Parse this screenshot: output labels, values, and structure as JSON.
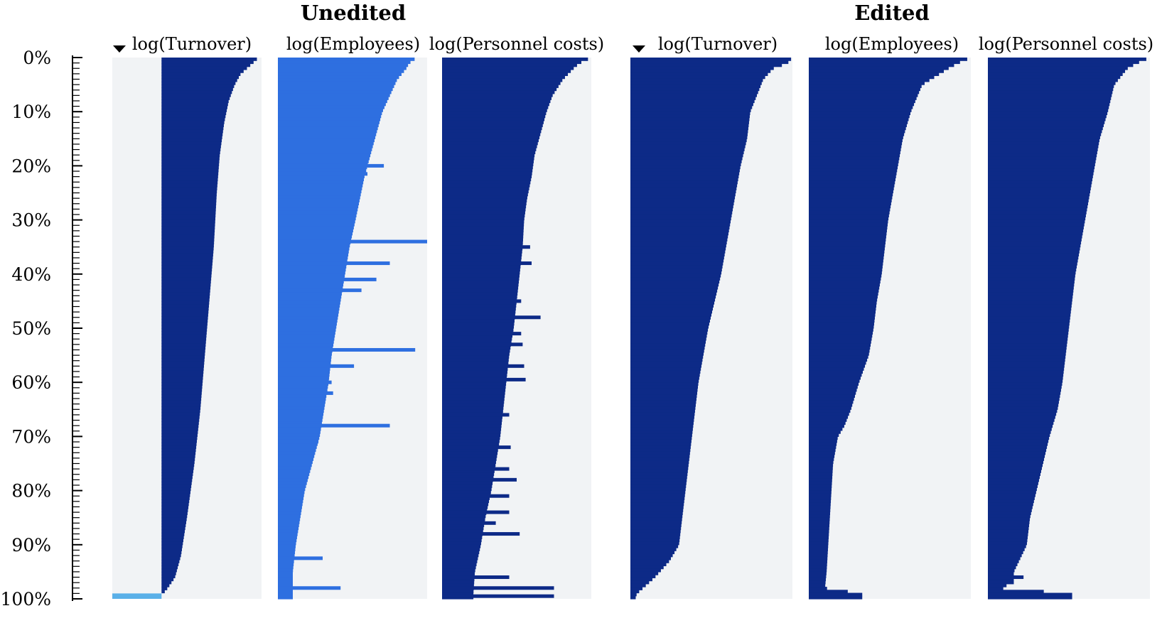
{
  "chart_data": {
    "type": "bar",
    "orientation": "horizontal",
    "layout": "table-lens",
    "y_axis": {
      "ticks": [
        "0%",
        "10%",
        "20%",
        "30%",
        "40%",
        "50%",
        "60%",
        "70%",
        "80%",
        "90%",
        "100%"
      ],
      "range": [
        0,
        100
      ],
      "unit": "percent"
    },
    "sort_indicator_icon": "triangle-down-icon",
    "colors": {
      "dark_bar": "#0d2a87",
      "light_bar": "#2e6fe0",
      "missing_bar": "#5ab0e8",
      "bar_background": "#f1f3f5",
      "axis": "#000000"
    },
    "panels": [
      {
        "title": "Unedited",
        "columns": [
          {
            "label": "log(Turnover)",
            "sorted": true,
            "color": "dark_bar",
            "value_range": [
              0,
              1
            ],
            "points": [
              [
                0,
                0.98
              ],
              [
                1,
                0.94
              ],
              [
                2,
                0.9
              ],
              [
                3,
                0.86
              ],
              [
                5,
                0.82
              ],
              [
                8,
                0.78
              ],
              [
                12,
                0.75
              ],
              [
                18,
                0.72
              ],
              [
                25,
                0.7
              ],
              [
                35,
                0.68
              ],
              [
                45,
                0.65
              ],
              [
                55,
                0.62
              ],
              [
                65,
                0.59
              ],
              [
                75,
                0.55
              ],
              [
                85,
                0.5
              ],
              [
                92,
                0.46
              ],
              [
                96,
                0.42
              ],
              [
                98,
                0.37
              ],
              [
                99,
                0.34
              ]
            ],
            "missing_band": {
              "from": 99,
              "to": 100,
              "value": 1.0
            }
          },
          {
            "label": "log(Employees)",
            "sorted": false,
            "color": "light_bar",
            "value_range": [
              0,
              1
            ],
            "points": [
              [
                0,
                0.93
              ],
              [
                1,
                0.88
              ],
              [
                2,
                0.86
              ],
              [
                4,
                0.8
              ],
              [
                7,
                0.75
              ],
              [
                10,
                0.7
              ],
              [
                14,
                0.66
              ],
              [
                18,
                0.62
              ],
              [
                22,
                0.58
              ],
              [
                26,
                0.55
              ],
              [
                30,
                0.52
              ],
              [
                35,
                0.48
              ],
              [
                40,
                0.45
              ],
              [
                45,
                0.42
              ],
              [
                50,
                0.39
              ],
              [
                55,
                0.36
              ],
              [
                60,
                0.34
              ],
              [
                65,
                0.31
              ],
              [
                70,
                0.28
              ],
              [
                75,
                0.23
              ],
              [
                80,
                0.18
              ],
              [
                85,
                0.15
              ],
              [
                90,
                0.12
              ],
              [
                95,
                0.1
              ],
              [
                99,
                0.1
              ]
            ],
            "outliers": [
              [
                20,
                0.71
              ],
              [
                21.5,
                0.6
              ],
              [
                34,
                1.0
              ],
              [
                38,
                0.75
              ],
              [
                41,
                0.66
              ],
              [
                43,
                0.56
              ],
              [
                54,
                0.92
              ],
              [
                57,
                0.51
              ],
              [
                60,
                0.36
              ],
              [
                62,
                0.37
              ],
              [
                68,
                0.75
              ],
              [
                71,
                0.27
              ],
              [
                92.5,
                0.3
              ],
              [
                98,
                0.42
              ]
            ]
          },
          {
            "label": "log(Personnel costs)",
            "sorted": false,
            "color": "dark_bar",
            "value_range": [
              0,
              1
            ],
            "points": [
              [
                0,
                1.0
              ],
              [
                1,
                0.92
              ],
              [
                2,
                0.88
              ],
              [
                4,
                0.81
              ],
              [
                7,
                0.74
              ],
              [
                10,
                0.7
              ],
              [
                14,
                0.66
              ],
              [
                18,
                0.62
              ],
              [
                22,
                0.6
              ],
              [
                26,
                0.57
              ],
              [
                30,
                0.55
              ],
              [
                35,
                0.54
              ],
              [
                40,
                0.52
              ],
              [
                45,
                0.5
              ],
              [
                50,
                0.48
              ],
              [
                55,
                0.45
              ],
              [
                60,
                0.43
              ],
              [
                65,
                0.41
              ],
              [
                70,
                0.39
              ],
              [
                75,
                0.36
              ],
              [
                80,
                0.33
              ],
              [
                85,
                0.29
              ],
              [
                90,
                0.26
              ],
              [
                95,
                0.22
              ],
              [
                99,
                0.21
              ]
            ],
            "outliers": [
              [
                35,
                0.59
              ],
              [
                38,
                0.6
              ],
              [
                45,
                0.53
              ],
              [
                48,
                0.66
              ],
              [
                51,
                0.53
              ],
              [
                53,
                0.54
              ],
              [
                57,
                0.55
              ],
              [
                59.5,
                0.56
              ],
              [
                66,
                0.45
              ],
              [
                72,
                0.46
              ],
              [
                76,
                0.45
              ],
              [
                78,
                0.5
              ],
              [
                81,
                0.45
              ],
              [
                84,
                0.45
              ],
              [
                86,
                0.36
              ],
              [
                88,
                0.52
              ],
              [
                96,
                0.45
              ],
              [
                98,
                0.75
              ],
              [
                99.5,
                0.75
              ]
            ]
          }
        ]
      },
      {
        "title": "Edited",
        "columns": [
          {
            "label": "log(Turnover)",
            "sorted": true,
            "color": "dark_bar",
            "value_range": [
              0,
              1
            ],
            "points": [
              [
                0,
                1.0
              ],
              [
                1,
                0.97
              ],
              [
                2,
                0.88
              ],
              [
                4,
                0.82
              ],
              [
                7,
                0.78
              ],
              [
                10,
                0.74
              ],
              [
                15,
                0.72
              ],
              [
                20,
                0.68
              ],
              [
                30,
                0.62
              ],
              [
                40,
                0.56
              ],
              [
                50,
                0.48
              ],
              [
                60,
                0.42
              ],
              [
                70,
                0.38
              ],
              [
                80,
                0.34
              ],
              [
                90,
                0.3
              ],
              [
                93,
                0.24
              ],
              [
                96,
                0.15
              ],
              [
                99,
                0.04
              ],
              [
                100,
                0.03
              ]
            ]
          },
          {
            "label": "log(Employees)",
            "sorted": false,
            "color": "dark_bar",
            "value_range": [
              0,
              1
            ],
            "points": [
              [
                0,
                1.0
              ],
              [
                1,
                0.92
              ],
              [
                2,
                0.86
              ],
              [
                5,
                0.7
              ],
              [
                10,
                0.63
              ],
              [
                15,
                0.58
              ],
              [
                20,
                0.55
              ],
              [
                25,
                0.52
              ],
              [
                30,
                0.49
              ],
              [
                35,
                0.47
              ],
              [
                40,
                0.45
              ],
              [
                45,
                0.42
              ],
              [
                50,
                0.4
              ],
              [
                55,
                0.37
              ],
              [
                60,
                0.31
              ],
              [
                65,
                0.26
              ],
              [
                68,
                0.22
              ],
              [
                70,
                0.18
              ],
              [
                75,
                0.15
              ],
              [
                80,
                0.14
              ],
              [
                85,
                0.13
              ],
              [
                90,
                0.12
              ],
              [
                95,
                0.11
              ],
              [
                98,
                0.1
              ],
              [
                99,
                0.33
              ],
              [
                100,
                0.33
              ]
            ]
          },
          {
            "label": "log(Personnel costs)",
            "sorted": false,
            "color": "dark_bar",
            "value_range": [
              0,
              1
            ],
            "points": [
              [
                0,
                1.0
              ],
              [
                1,
                0.92
              ],
              [
                2,
                0.86
              ],
              [
                5,
                0.78
              ],
              [
                10,
                0.74
              ],
              [
                15,
                0.69
              ],
              [
                20,
                0.66
              ],
              [
                25,
                0.63
              ],
              [
                30,
                0.6
              ],
              [
                35,
                0.57
              ],
              [
                40,
                0.54
              ],
              [
                45,
                0.52
              ],
              [
                50,
                0.5
              ],
              [
                55,
                0.48
              ],
              [
                60,
                0.46
              ],
              [
                65,
                0.43
              ],
              [
                70,
                0.38
              ],
              [
                75,
                0.34
              ],
              [
                80,
                0.3
              ],
              [
                85,
                0.26
              ],
              [
                90,
                0.24
              ],
              [
                95,
                0.16
              ],
              [
                97,
                0.16
              ],
              [
                98,
                0.07
              ],
              [
                99,
                0.52
              ],
              [
                100,
                0.52
              ]
            ],
            "outliers": [
              [
                92,
                0.2
              ],
              [
                94,
                0.17
              ],
              [
                96,
                0.22
              ]
            ]
          }
        ]
      }
    ]
  }
}
